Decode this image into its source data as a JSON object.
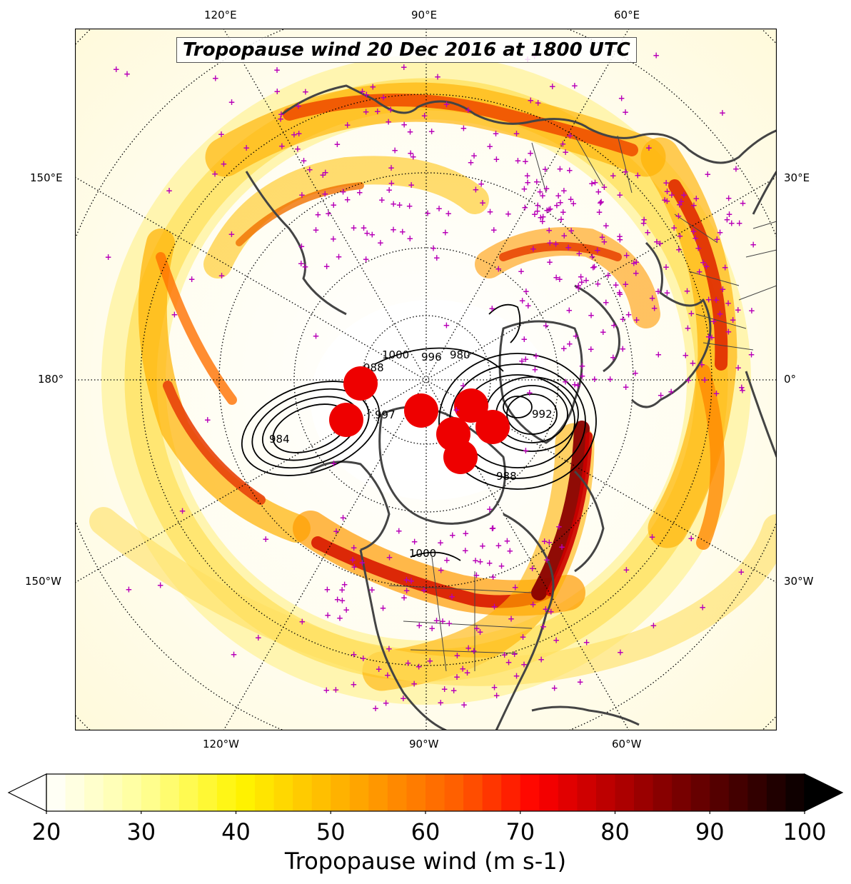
{
  "map": {
    "title": "Tropopause wind 20 Dec 2016 at 1800 UTC",
    "projection": "north polar stereographic",
    "lon_labels_top": [
      "120°E",
      "90°E",
      "60°E"
    ],
    "lon_labels_bottom": [
      "120°W",
      "90°W",
      "60°W"
    ],
    "lon_labels_left": [
      "150°E",
      "180°",
      "150°W"
    ],
    "lon_labels_right": [
      "30°E",
      "0°",
      "30°W"
    ],
    "contour_labels": [
      "1000",
      "996",
      "980",
      "988",
      "992",
      "997",
      "984",
      "1000",
      "988"
    ],
    "colors": {
      "jet_low": "#fff9b0",
      "jet_mid": "#ffd000",
      "jet_high": "#ff7a00",
      "jet_core": "#cc0000",
      "jet_max": "#330000",
      "coast": "#444444",
      "station_marker": "#b800b8",
      "cyclone_marker": "#ee0000"
    }
  },
  "colorbar": {
    "label": "Tropopause wind (m s-1)",
    "ticks": [
      "20",
      "30",
      "40",
      "50",
      "60",
      "70",
      "80",
      "90",
      "100"
    ],
    "min": 20,
    "max": 100,
    "extend": "both"
  }
}
